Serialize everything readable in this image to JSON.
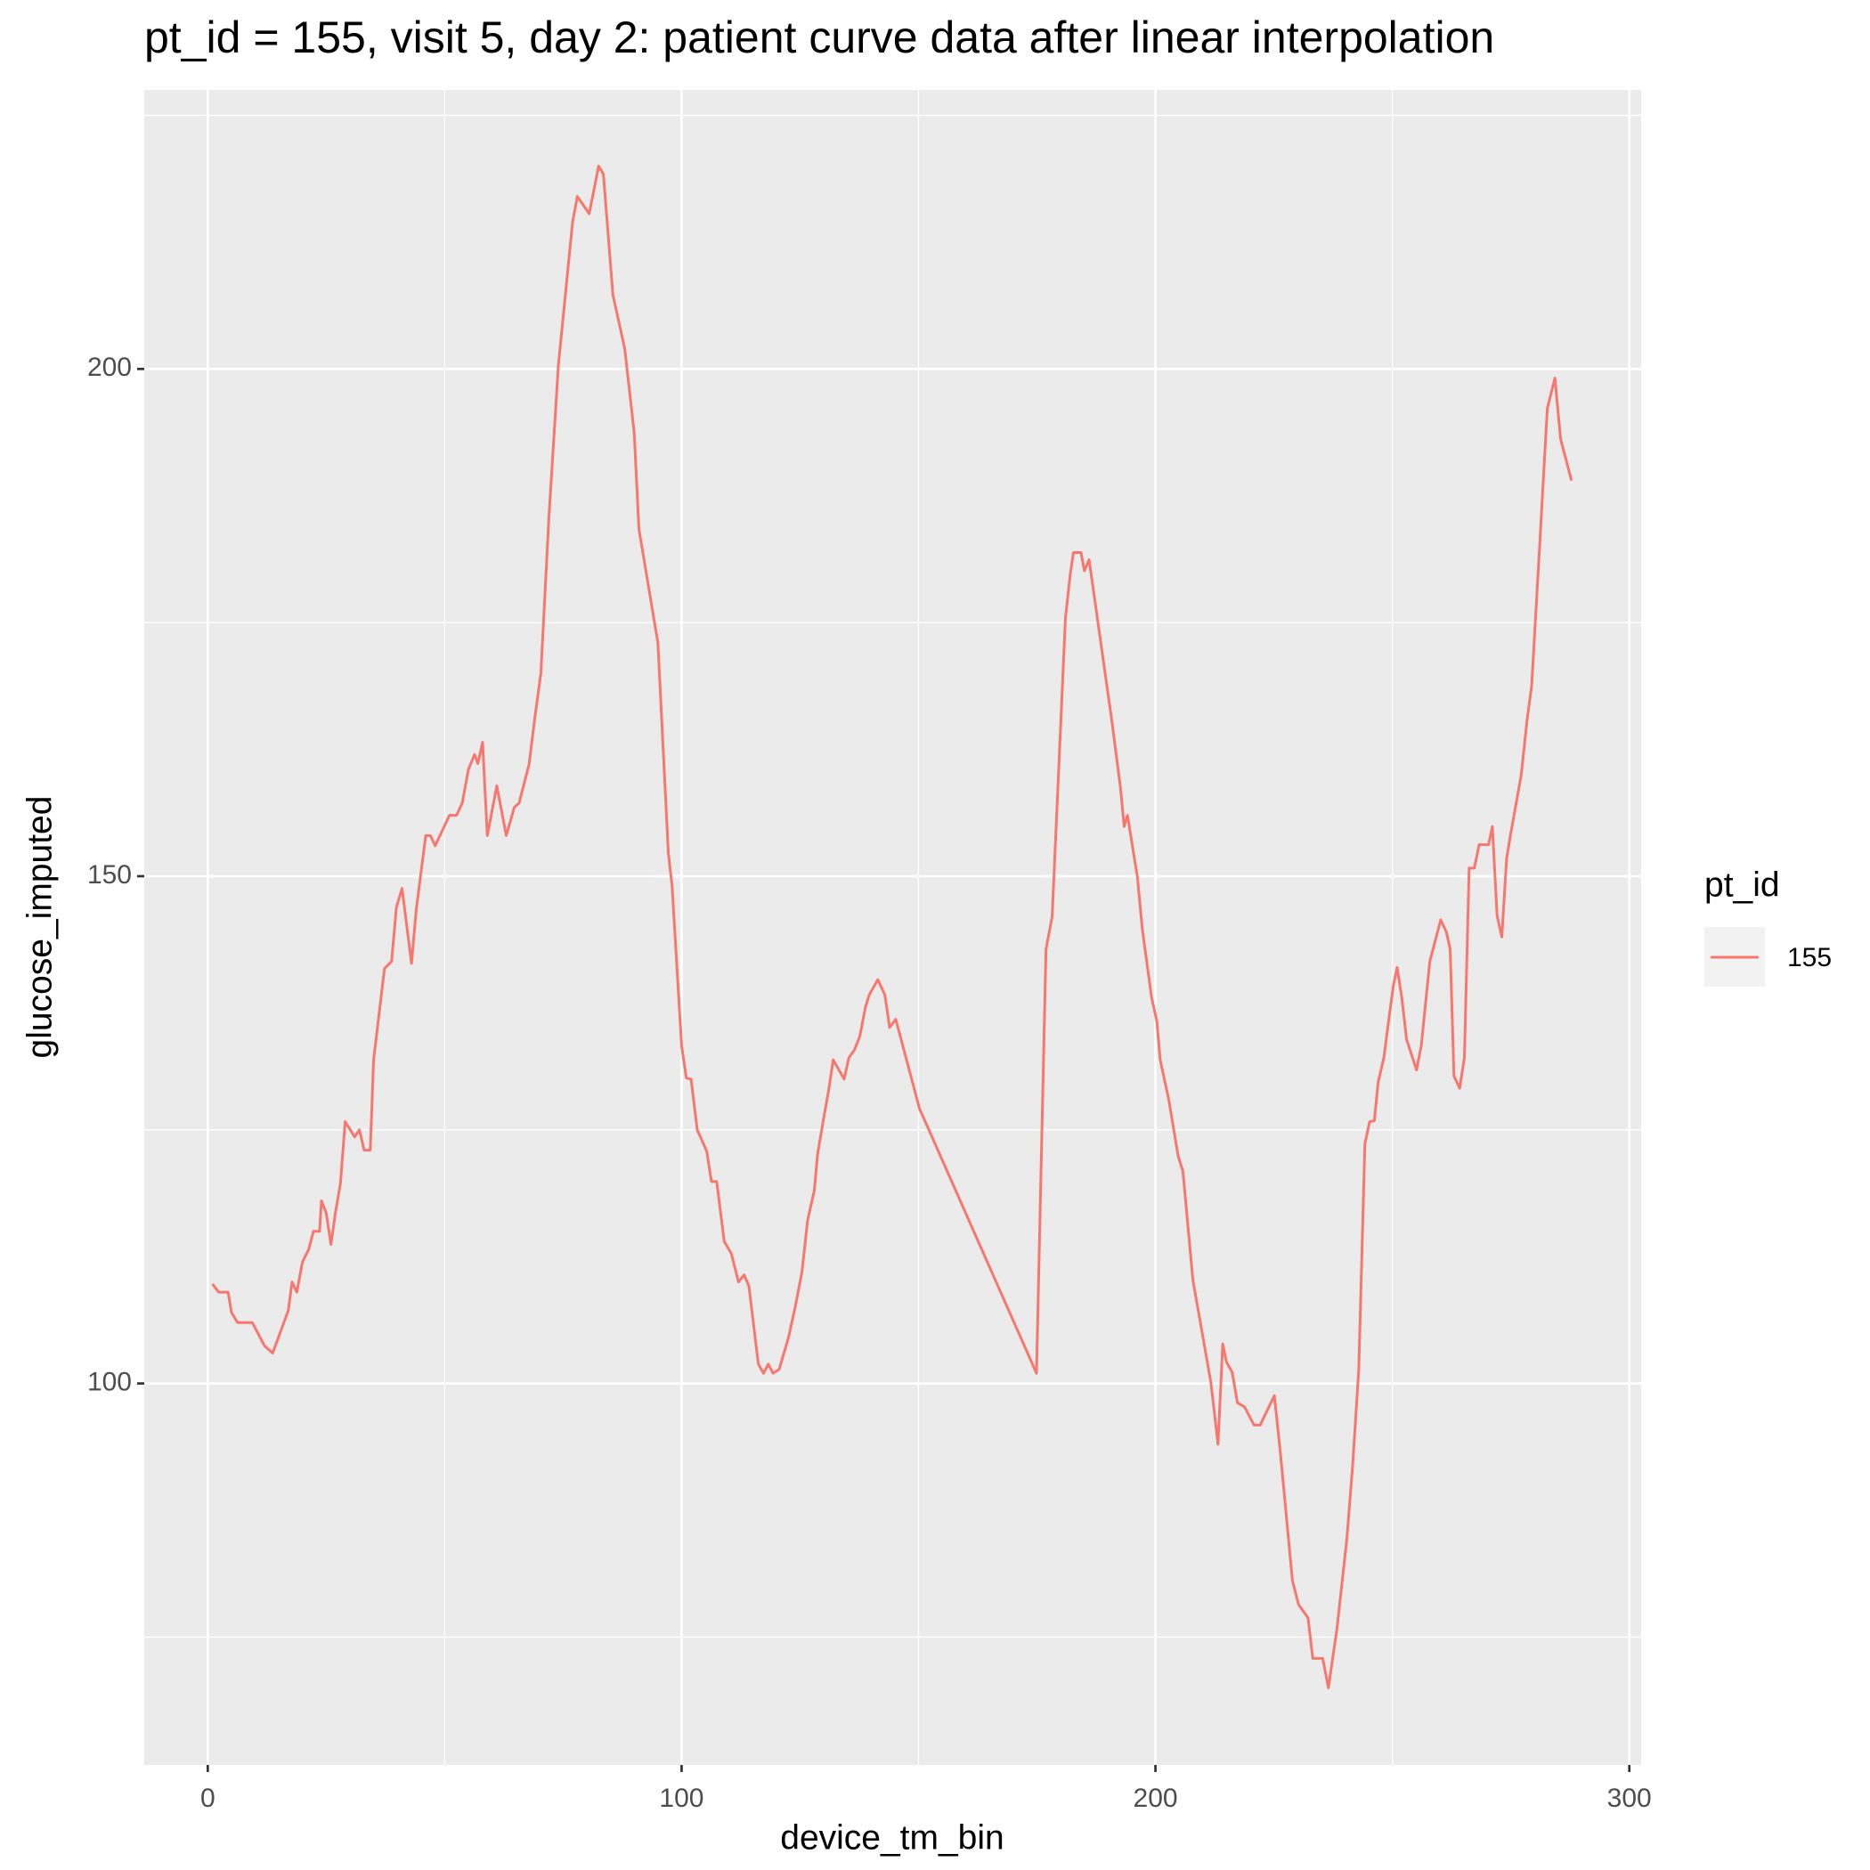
{
  "chart_data": {
    "type": "line",
    "title": "pt_id = 155, visit 5, day 2: patient curve data after linear interpolation",
    "x_label": "device_tm_bin",
    "y_label": "glucose_imputed",
    "legend_title": "pt_id",
    "legend_position": "right",
    "xlim": [
      -13.4,
      302.5
    ],
    "ylim": [
      62.4,
      227.5
    ],
    "xticks": [
      0,
      100,
      200,
      300
    ],
    "yticks": [
      100,
      150,
      200
    ],
    "grid": true,
    "series": [
      {
        "name": "155",
        "color": "#F8766D",
        "x": [
          1,
          2.3,
          4.3,
          5,
          6.3,
          9.4,
          12,
          13.7,
          17,
          17.8,
          18.8,
          20,
          21.3,
          22.3,
          23.6,
          24,
          25,
          26,
          27,
          28,
          29,
          31,
          32,
          33,
          34.3,
          35,
          37.3,
          38.8,
          39.8,
          41,
          43,
          44,
          46,
          47,
          48,
          51,
          52.5,
          53.7,
          55,
          56.3,
          57,
          58,
          59,
          61,
          63,
          64.7,
          65.7,
          67.8,
          69,
          70.3,
          72,
          74,
          77,
          78,
          80.5,
          82.5,
          83.5,
          85.5,
          88,
          90,
          91,
          95,
          97.2,
          98,
          100,
          101,
          102,
          103.3,
          105.3,
          106.3,
          107.4,
          109,
          110.5,
          112,
          113.2,
          114.2,
          116.2,
          117.3,
          118.3,
          119.3,
          120.6,
          122.6,
          124,
          125.4,
          126.6,
          128,
          128.7,
          130,
          131,
          132,
          134.3,
          135.3,
          136.5,
          137.6,
          138.8,
          139.6,
          141.4,
          142.9,
          143.9,
          145.2,
          150.2,
          174.9,
          176.9,
          178.2,
          181,
          182,
          182.7,
          184.3,
          185,
          186,
          190.8,
          192.6,
          193.4,
          194.1,
          196.2,
          197.2,
          199.2,
          200.3,
          201,
          202.8,
          204.8,
          205.8,
          207.9,
          211.7,
          213.2,
          214.2,
          215,
          216.2,
          217.3,
          218.8,
          220.8,
          222.1,
          225.1,
          226.4,
          228.9,
          230.2,
          232.2,
          233.2,
          235.3,
          236.5,
          238.3,
          240.4,
          241.6,
          242.9,
          244.2,
          245.2,
          246.2,
          247,
          248.2,
          249.2,
          250.2,
          251,
          252,
          253,
          255.1,
          256.1,
          257.9,
          260.2,
          261.4,
          262.2,
          263,
          264.2,
          265.2,
          266.2,
          267.3,
          268.3,
          270.3,
          271.1,
          272.1,
          273.1,
          274.1,
          274.9,
          277.2,
          278.4,
          279.4,
          281,
          282.7,
          284.3,
          285.5,
          287.8
        ],
        "values": [
          109.8,
          109,
          109,
          107,
          106,
          106,
          103.7,
          103,
          107.2,
          110,
          109,
          112,
          113.2,
          115,
          115,
          118,
          116.8,
          113.7,
          117,
          119.7,
          125.8,
          124.3,
          125,
          123,
          123,
          131.9,
          140.9,
          141.6,
          146.9,
          148.8,
          141.4,
          146.7,
          154,
          154,
          153,
          156,
          156,
          157.2,
          160.5,
          162,
          161.1,
          163.2,
          154,
          158.9,
          154,
          156.8,
          157.2,
          161,
          165.5,
          170,
          185.4,
          200.4,
          214.5,
          217,
          215.3,
          220,
          219.2,
          207.3,
          202,
          193.7,
          184.2,
          173,
          152.3,
          149,
          133.3,
          130.1,
          130,
          125,
          122.9,
          119.9,
          119.9,
          114,
          112.8,
          110,
          110.7,
          109.6,
          101.9,
          101,
          101.9,
          101,
          101.4,
          104.6,
          107.6,
          111,
          116.1,
          119,
          122.6,
          126.2,
          128.8,
          131.9,
          130,
          132.1,
          132.9,
          134.2,
          137.1,
          138.3,
          139.8,
          138.3,
          135.1,
          135.9,
          127.1,
          101,
          142.8,
          146,
          175.4,
          179.7,
          181.9,
          181.9,
          180.1,
          181.2,
          165.3,
          158.8,
          154.9,
          156,
          149.9,
          144.9,
          138,
          135.7,
          131.9,
          128,
          122.4,
          120.9,
          110.2,
          100.1,
          94,
          103.9,
          102.1,
          101.1,
          98.1,
          97.7,
          95.9,
          95.9,
          98.8,
          93,
          80.6,
          78.2,
          76.9,
          72.9,
          72.9,
          70,
          75.8,
          84.7,
          91.8,
          101.3,
          123.6,
          125.8,
          125.9,
          129.7,
          132.1,
          135.7,
          139.2,
          141,
          138,
          133.9,
          130.9,
          133.3,
          141.6,
          145.7,
          144.5,
          142.8,
          130.3,
          129.1,
          132.1,
          150.8,
          150.8,
          153.1,
          153.1,
          154.9,
          146.1,
          144,
          151.7,
          154,
          160,
          165.3,
          168.8,
          181.9,
          196.1,
          199.1,
          193.1,
          189
        ]
      }
    ]
  }
}
